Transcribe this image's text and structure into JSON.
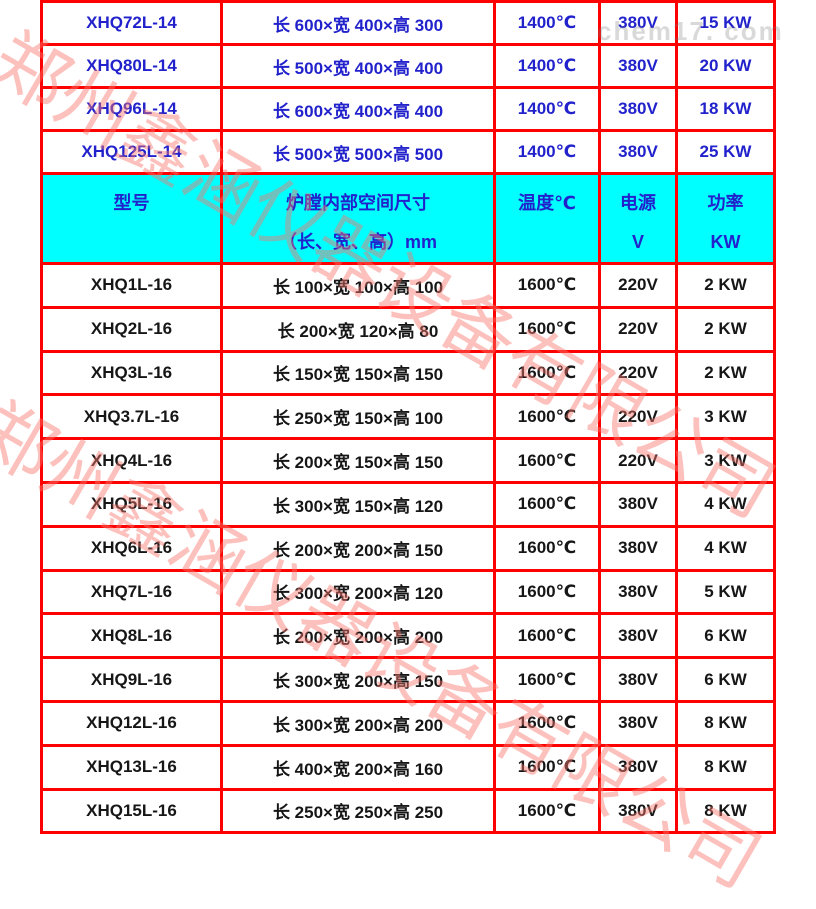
{
  "watermark": {
    "company": "郑州鑫涵仪器设备有限公司",
    "site": "chem17. com"
  },
  "colors": {
    "border_red": "#ff0000",
    "text_blue": "#2222cc",
    "text_black": "#161616",
    "header_bg_cyan": "#00ffff",
    "watermark_pink": "#f8766c",
    "watermark_gray": "#c9c9c9"
  },
  "table": {
    "header": {
      "model": "型号",
      "size_line1": "炉膛内部空间尺寸",
      "size_line2": "（长、宽、高）mm",
      "temp": "温度℃",
      "power_line1": "电源",
      "power_line2": "V",
      "rating_line1": "功率",
      "rating_line2": "KW"
    },
    "rows_14": [
      {
        "model": "XHQ72L-14",
        "size": "长 600×宽 400×高 300",
        "temp": "1400℃",
        "volt": "380V",
        "power": "15 KW"
      },
      {
        "model": "XHQ80L-14",
        "size": "长 500×宽 400×高 400",
        "temp": "1400℃",
        "volt": "380V",
        "power": "20 KW"
      },
      {
        "model": "XHQ96L-14",
        "size": "长 600×宽 400×高 400",
        "temp": "1400℃",
        "volt": "380V",
        "power": "18 KW"
      },
      {
        "model": "XHQ125L-14",
        "size": "长 500×宽 500×高 500",
        "temp": "1400℃",
        "volt": "380V",
        "power": "25 KW"
      }
    ],
    "rows_16": [
      {
        "model": "XHQ1L-16",
        "size": "长 100×宽 100×高 100",
        "temp": "1600℃",
        "volt": "220V",
        "power": "2 KW"
      },
      {
        "model": "XHQ2L-16",
        "size": "长 200×宽 120×高 80",
        "temp": "1600℃",
        "volt": "220V",
        "power": "2 KW"
      },
      {
        "model": "XHQ3L-16",
        "size": "长 150×宽 150×高 150",
        "temp": "1600℃",
        "volt": "220V",
        "power": "2 KW"
      },
      {
        "model": "XHQ3.7L-16",
        "size": "长 250×宽 150×高 100",
        "temp": "1600℃",
        "volt": "220V",
        "power": "3 KW"
      },
      {
        "model": "XHQ4L-16",
        "size": "长 200×宽 150×高 150",
        "temp": "1600℃",
        "volt": "220V",
        "power": "3 KW"
      },
      {
        "model": "XHQ5L-16",
        "size": "长 300×宽 150×高 120",
        "temp": "1600℃",
        "volt": "380V",
        "power": "4 KW"
      },
      {
        "model": "XHQ6L-16",
        "size": "长 200×宽 200×高 150",
        "temp": "1600℃",
        "volt": "380V",
        "power": "4 KW"
      },
      {
        "model": "XHQ7L-16",
        "size": "长 300×宽 200×高 120",
        "temp": "1600℃",
        "volt": "380V",
        "power": "5 KW"
      },
      {
        "model": "XHQ8L-16",
        "size": "长 200×宽 200×高 200",
        "temp": "1600℃",
        "volt": "380V",
        "power": "6 KW"
      },
      {
        "model": "XHQ9L-16",
        "size": "长 300×宽 200×高 150",
        "temp": "1600℃",
        "volt": "380V",
        "power": "6 KW"
      },
      {
        "model": "XHQ12L-16",
        "size": "长 300×宽 200×高 200",
        "temp": "1600℃",
        "volt": "380V",
        "power": "8 KW"
      },
      {
        "model": "XHQ13L-16",
        "size": "长 400×宽 200×高 160",
        "temp": "1600℃",
        "volt": "380V",
        "power": "8 KW"
      },
      {
        "model": "XHQ15L-16",
        "size": "长 250×宽 250×高 250",
        "temp": "1600℃",
        "volt": "380V",
        "power": "8 KW"
      }
    ]
  }
}
